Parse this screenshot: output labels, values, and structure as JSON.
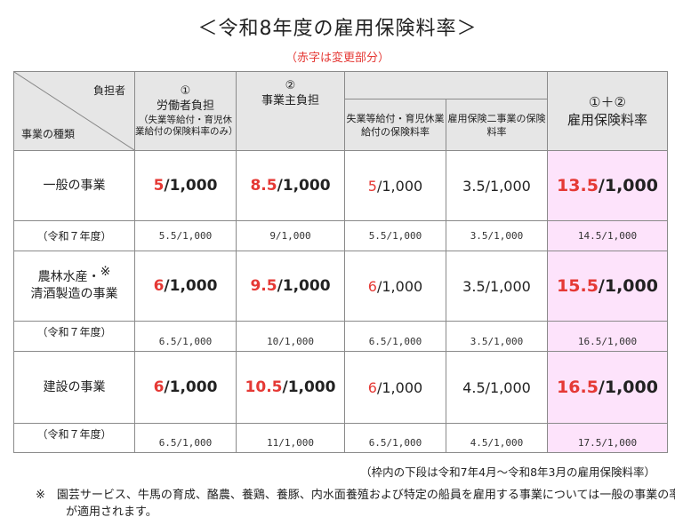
{
  "title": "＜令和8年度の雇用保険料率＞",
  "subtitle": "（赤字は変更部分）",
  "header": {
    "corner_top": "負担者",
    "corner_bottom": "事業の種類",
    "worker_num": "①",
    "worker_label": "労働者負担",
    "worker_note": "（失業等給付・育児休業給付の保険料率のみ）",
    "employer_num": "②",
    "employer_label": "事業主負担",
    "sub1": "失業等給付・育児休業給付の保険料率",
    "sub2": "雇用保険二事業の保険料率",
    "total_num": "①＋②",
    "total_label": "雇用保険料率"
  },
  "rows": [
    {
      "label": "一般の事業",
      "worker": {
        "red": "5",
        "black": "/1,000"
      },
      "employer": {
        "red": "8.5",
        "black": "/1,000"
      },
      "sub1": {
        "red": "5",
        "black": "/1,000"
      },
      "sub2": "3.5/1,000",
      "total": {
        "red": "13.5",
        "black": "/1,000"
      },
      "prev_label": "（令和７年度）",
      "prev": [
        "5.5/1,000",
        "9/1,000",
        "5.5/1,000",
        "3.5/1,000",
        "14.5/1,000"
      ]
    },
    {
      "label_line1": "農林水産・",
      "mark": "※",
      "label_line2": "清酒製造の事業",
      "worker": {
        "red": "6",
        "black": "/1,000"
      },
      "employer": {
        "red": "9.5",
        "black": "/1,000"
      },
      "sub1": {
        "red": "6",
        "black": "/1,000"
      },
      "sub2": "3.5/1,000",
      "total": {
        "red": "15.5",
        "black": "/1,000"
      },
      "prev_label": "（令和７年度）",
      "prev": [
        "6.5/1,000",
        "10/1,000",
        "6.5/1,000",
        "3.5/1,000",
        "16.5/1,000"
      ]
    },
    {
      "label": "建設の事業",
      "worker": {
        "red": "6",
        "black": "/1,000"
      },
      "employer": {
        "red": "10.5",
        "black": "/1,000"
      },
      "sub1": {
        "red": "6",
        "black": "/1,000"
      },
      "sub2": "4.5/1,000",
      "total": {
        "red": "16.5",
        "black": "/1,000"
      },
      "prev_label": "（令和７年度）",
      "prev": [
        "6.5/1,000",
        "11/1,000",
        "6.5/1,000",
        "4.5/1,000",
        "17.5/1,000"
      ]
    }
  ],
  "footnote_top": "（枠内の下段は令和7年4月～令和8年3月の雇用保険料率）",
  "footnote_bottom": "※　園芸サービス、牛馬の育成、酪農、養鶏、養豚、内水面養殖および特定の船員を雇用する事業については一般の事業の率が適用されます。",
  "colors": {
    "changed": "#e53935",
    "highlight": "#fde3fb",
    "header_bg": "#e6e6e6"
  }
}
